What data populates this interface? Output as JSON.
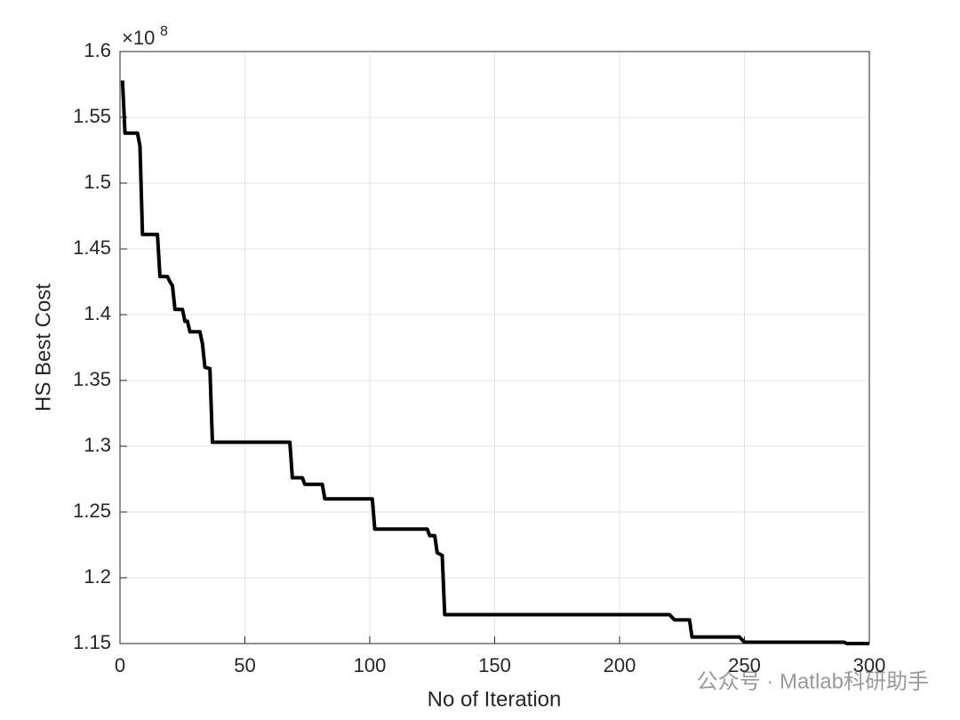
{
  "chart_data": {
    "type": "line",
    "xlabel": "No of Iteration",
    "ylabel": "HS Best Cost",
    "y_multiplier_base": "×10",
    "y_multiplier_exponent": "8",
    "watermark": "公众号 · Matlab科研助手",
    "xlim": [
      0,
      300
    ],
    "ylim": [
      1.15,
      1.6
    ],
    "xticks": [
      0,
      50,
      100,
      150,
      200,
      250,
      300
    ],
    "yticks": [
      1.15,
      1.2,
      1.25,
      1.3,
      1.35,
      1.4,
      1.45,
      1.5,
      1.55,
      1.6
    ],
    "grid": true,
    "x": [
      1,
      2,
      7,
      8,
      9,
      15,
      16,
      19,
      20,
      21,
      22,
      25,
      26,
      27,
      28,
      32,
      33,
      34,
      36,
      37,
      68,
      69,
      73,
      74,
      81,
      82,
      101,
      102,
      123,
      124,
      126,
      127,
      129,
      130,
      220,
      222,
      228,
      229,
      248,
      250,
      290,
      291,
      300
    ],
    "series": [
      {
        "color": "#000000",
        "values": [
          1.578,
          1.538,
          1.538,
          1.528,
          1.461,
          1.461,
          1.429,
          1.429,
          1.425,
          1.422,
          1.404,
          1.404,
          1.395,
          1.395,
          1.387,
          1.387,
          1.378,
          1.36,
          1.359,
          1.303,
          1.303,
          1.276,
          1.276,
          1.271,
          1.271,
          1.26,
          1.26,
          1.237,
          1.237,
          1.232,
          1.232,
          1.219,
          1.217,
          1.172,
          1.172,
          1.168,
          1.168,
          1.155,
          1.155,
          1.151,
          1.151,
          1.15,
          1.15
        ]
      }
    ]
  }
}
